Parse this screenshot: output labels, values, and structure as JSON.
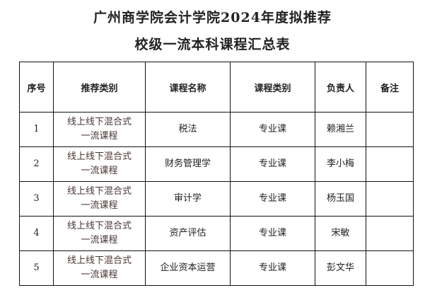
{
  "title_line1": "广州商学院会计学院2024年度拟推荐",
  "title_line2": "校级一流本科课程汇总表",
  "table": {
    "headers": [
      "序号",
      "推荐类别",
      "课程名称",
      "课程类别",
      "负责人",
      "备注"
    ],
    "rows": [
      {
        "no": "1",
        "category_line1": "线上线下混合式",
        "category_line2": "一流课程",
        "course": "税法",
        "type": "专业课",
        "owner": "赖湘兰",
        "note": ""
      },
      {
        "no": "2",
        "category_line1": "线上线下混合式",
        "category_line2": "一流课程",
        "course": "财务管理学",
        "type": "专业课",
        "owner": "李小梅",
        "note": ""
      },
      {
        "no": "3",
        "category_line1": "线上线下混合式",
        "category_line2": "一流课程",
        "course": "审计学",
        "type": "专业课",
        "owner": "杨玉国",
        "note": ""
      },
      {
        "no": "4",
        "category_line1": "线上线下混合式",
        "category_line2": "一流课程",
        "course": "资产评估",
        "type": "专业课",
        "owner": "宋敏",
        "note": ""
      },
      {
        "no": "5",
        "category_line1": "线上线下混合式",
        "category_line2": "一流课程",
        "course": "企业资本运营",
        "type": "专业课",
        "owner": "彭文华",
        "note": ""
      }
    ]
  }
}
